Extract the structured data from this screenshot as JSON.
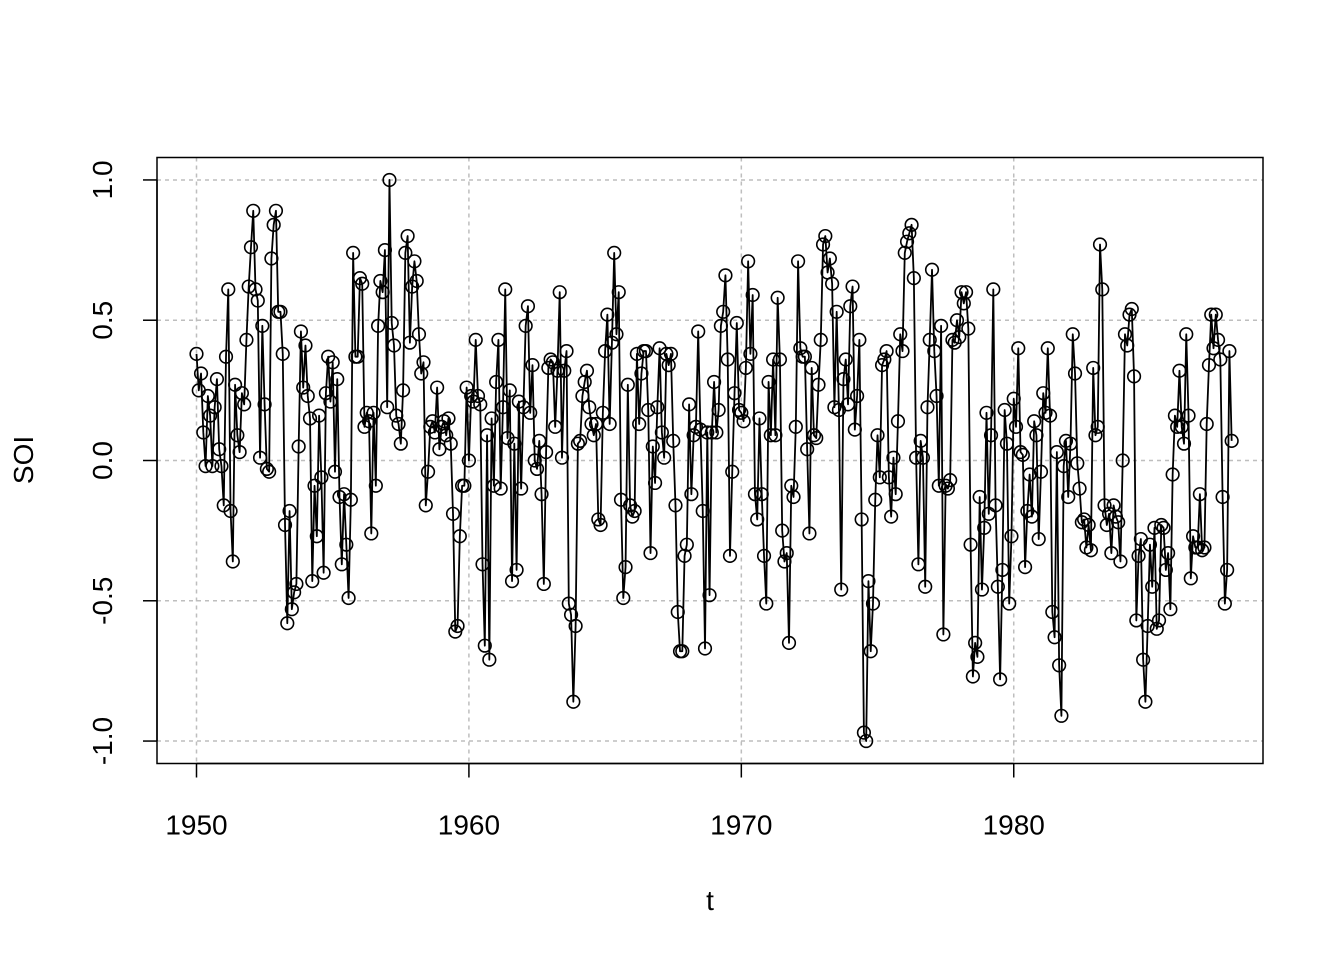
{
  "chart_data": {
    "type": "line",
    "markers": "open-circle",
    "xlabel": "t",
    "ylabel": "SOI",
    "xlim": [
      1948.55,
      1989.15
    ],
    "ylim": [
      -1.08,
      1.08
    ],
    "x_ticks": [
      1950,
      1960,
      1970,
      1980
    ],
    "x_tick_labels": [
      "1950",
      "1960",
      "1970",
      "1980"
    ],
    "y_ticks": [
      -1.0,
      -0.5,
      0.0,
      0.5,
      1.0
    ],
    "y_tick_labels": [
      "-1.0",
      "-0.5",
      "0.0",
      "0.5",
      "1.0"
    ],
    "grid": true,
    "x_start": 1950,
    "x_step": 0.0833333,
    "colors": {
      "line": "#000000",
      "grid": "#bebebe",
      "frame": "#000000"
    },
    "series": [
      {
        "values": [
          0.38,
          0.25,
          0.31,
          0.1,
          -0.02,
          0.23,
          0.16,
          -0.02,
          0.19,
          0.29,
          0.04,
          -0.02,
          -0.16,
          0.37,
          0.61,
          -0.18,
          -0.36,
          0.27,
          0.09,
          0.03,
          0.24,
          0.2,
          0.43,
          0.62,
          0.76,
          0.89,
          0.61,
          0.57,
          0.01,
          0.48,
          0.2,
          -0.03,
          -0.04,
          0.72,
          0.84,
          0.89,
          0.53,
          0.53,
          0.38,
          -0.23,
          -0.58,
          -0.18,
          -0.53,
          -0.47,
          -0.44,
          0.05,
          0.46,
          0.26,
          0.41,
          0.23,
          0.15,
          -0.43,
          -0.09,
          -0.27,
          0.16,
          -0.06,
          -0.4,
          0.24,
          0.37,
          0.21,
          0.35,
          -0.04,
          0.29,
          -0.13,
          -0.37,
          -0.12,
          -0.3,
          -0.49,
          -0.14,
          0.74,
          0.37,
          0.37,
          0.65,
          0.63,
          0.12,
          0.17,
          0.14,
          -0.26,
          0.17,
          -0.09,
          0.48,
          0.64,
          0.6,
          0.75,
          0.19,
          1.0,
          0.49,
          0.41,
          0.16,
          0.13,
          0.06,
          0.25,
          0.74,
          0.8,
          0.42,
          0.62,
          0.71,
          0.64,
          0.45,
          0.31,
          0.35,
          -0.16,
          -0.04,
          0.12,
          0.14,
          0.1,
          0.26,
          0.04,
          0.12,
          0.14,
          0.09,
          0.15,
          0.06,
          -0.19,
          -0.61,
          -0.59,
          -0.27,
          -0.09,
          -0.09,
          0.26,
          0.0,
          0.23,
          0.21,
          0.43,
          0.23,
          0.2,
          -0.37,
          -0.66,
          0.09,
          -0.71,
          0.15,
          -0.09,
          0.28,
          0.43,
          -0.1,
          0.19,
          0.61,
          0.08,
          0.25,
          -0.43,
          0.06,
          -0.39,
          0.21,
          -0.1,
          0.19,
          0.48,
          0.55,
          0.17,
          0.34,
          0.0,
          -0.03,
          0.07,
          -0.12,
          -0.44,
          0.03,
          0.33,
          0.36,
          0.35,
          0.12,
          0.32,
          0.6,
          0.01,
          0.32,
          0.39,
          -0.51,
          -0.55,
          -0.86,
          -0.59,
          0.06,
          0.07,
          0.23,
          0.28,
          0.32,
          0.19,
          0.13,
          0.09,
          0.13,
          -0.21,
          -0.23,
          0.17,
          0.39,
          0.52,
          0.13,
          0.42,
          0.74,
          0.45,
          0.6,
          -0.14,
          -0.49,
          -0.38,
          0.27,
          -0.16,
          -0.2,
          -0.18,
          0.38,
          0.13,
          0.31,
          0.39,
          0.39,
          0.18,
          -0.33,
          0.05,
          -0.08,
          0.19,
          0.4,
          0.1,
          0.01,
          0.38,
          0.34,
          0.38,
          0.07,
          -0.16,
          -0.54,
          -0.68,
          -0.68,
          -0.34,
          -0.3,
          0.2,
          -0.12,
          0.09,
          0.12,
          0.46,
          0.11,
          -0.18,
          -0.67,
          0.1,
          -0.48,
          0.1,
          0.28,
          0.1,
          0.18,
          0.48,
          0.53,
          0.66,
          0.36,
          -0.34,
          -0.04,
          0.24,
          0.49,
          0.18,
          0.17,
          0.14,
          0.33,
          0.71,
          0.38,
          0.59,
          -0.12,
          -0.21,
          0.15,
          -0.12,
          -0.34,
          -0.51,
          0.28,
          0.09,
          0.36,
          0.09,
          0.58,
          0.36,
          -0.25,
          -0.36,
          -0.33,
          -0.65,
          -0.09,
          -0.13,
          0.12,
          0.71,
          0.4,
          0.37,
          0.37,
          0.04,
          -0.26,
          0.33,
          0.09,
          0.08,
          0.27,
          0.43,
          0.77,
          0.8,
          0.67,
          0.72,
          0.63,
          0.19,
          0.53,
          0.18,
          -0.46,
          0.29,
          0.36,
          0.2,
          0.55,
          0.62,
          0.11,
          0.23,
          0.43,
          -0.21,
          -0.97,
          -1.0,
          -0.43,
          -0.68,
          -0.51,
          -0.14,
          0.09,
          -0.06,
          0.34,
          0.36,
          0.39,
          -0.06,
          -0.2,
          0.01,
          -0.12,
          0.14,
          0.45,
          0.39,
          0.74,
          0.78,
          0.81,
          0.84,
          0.65,
          0.01,
          -0.37,
          0.07,
          0.01,
          -0.45,
          0.19,
          0.43,
          0.68,
          0.39,
          0.23,
          -0.09,
          0.48,
          -0.62,
          -0.09,
          -0.1,
          -0.07,
          0.43,
          0.42,
          0.5,
          0.44,
          0.6,
          0.56,
          0.6,
          0.47,
          -0.3,
          -0.77,
          -0.65,
          -0.7,
          -0.13,
          -0.46,
          -0.24,
          0.17,
          -0.19,
          0.09,
          0.61,
          -0.16,
          -0.45,
          -0.78,
          -0.39,
          0.18,
          0.06,
          -0.51,
          -0.27,
          0.22,
          0.12,
          0.4,
          0.03,
          0.02,
          -0.38,
          -0.18,
          -0.05,
          -0.2,
          0.14,
          0.09,
          -0.28,
          -0.04,
          0.24,
          0.17,
          0.4,
          0.16,
          -0.54,
          -0.63,
          0.03,
          -0.73,
          -0.91,
          -0.02,
          0.07,
          -0.13,
          0.06,
          0.45,
          0.31,
          -0.01,
          -0.1,
          -0.22,
          -0.21,
          -0.31,
          -0.23,
          -0.32,
          0.33,
          0.09,
          0.12,
          0.77,
          0.61,
          -0.16,
          -0.23,
          -0.19,
          -0.33,
          -0.16,
          -0.2,
          -0.22,
          -0.36,
          0.0,
          0.45,
          0.41,
          0.52,
          0.54,
          0.3,
          -0.57,
          -0.34,
          -0.28,
          -0.71,
          -0.86,
          -0.59,
          -0.3,
          -0.45,
          -0.24,
          -0.6,
          -0.57,
          -0.23,
          -0.24,
          -0.39,
          -0.33,
          -0.53,
          -0.05,
          0.16,
          0.12,
          0.32,
          0.12,
          0.06,
          0.45,
          0.16,
          -0.42,
          -0.27,
          -0.31,
          -0.31,
          -0.12,
          -0.32,
          -0.31,
          0.13,
          0.34,
          0.52,
          0.4,
          0.52,
          0.43,
          0.36,
          -0.13,
          -0.51,
          -0.39,
          0.39,
          0.07
        ]
      }
    ]
  }
}
